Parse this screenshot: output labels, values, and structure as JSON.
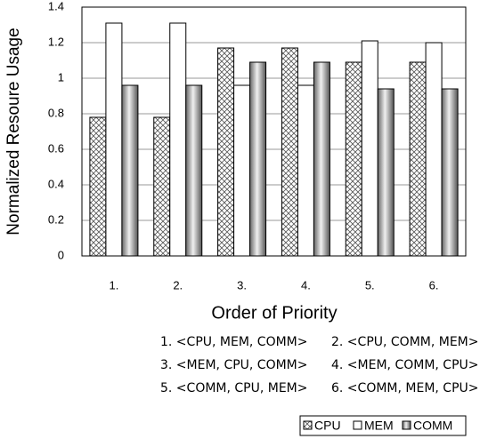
{
  "chart_data": {
    "type": "bar",
    "y_label": "Normalized Resoure Usage",
    "x_label": "Order of Priority",
    "categories": [
      "1.",
      "2.",
      "3.",
      "4.",
      "5.",
      "6."
    ],
    "series": [
      {
        "name": "CPU",
        "color": "#555555",
        "values": [
          0.78,
          0.78,
          1.17,
          1.17,
          1.09,
          1.09
        ]
      },
      {
        "name": "MEM",
        "color": "#ffffff",
        "values": [
          1.31,
          1.31,
          0.96,
          0.96,
          1.21,
          1.2
        ]
      },
      {
        "name": "COMM",
        "color": "#888888",
        "values": [
          0.96,
          0.96,
          1.09,
          1.09,
          0.94,
          0.94
        ]
      }
    ],
    "ylim": [
      0,
      1.4
    ],
    "yticks": [
      0,
      0.2,
      0.4,
      0.6,
      0.8,
      1,
      1.2,
      1.4
    ],
    "grid": true,
    "notes": [
      "1. <CPU, MEM, COMM>",
      "2. <CPU, COMM, MEM>",
      "3. <MEM, CPU, COMM>",
      "4. <MEM, COMM, CPU>",
      "5. <COMM, CPU, MEM>",
      "6. <COMM, MEM, CPU>"
    ]
  }
}
